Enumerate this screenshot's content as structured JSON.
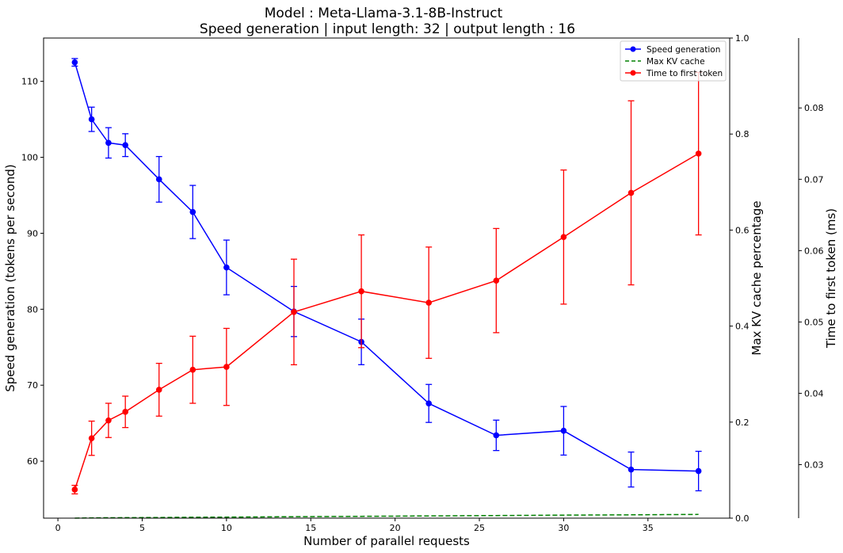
{
  "chart_data": {
    "type": "line",
    "title": "Model : Meta-Llama-3.1-8B-Instruct",
    "subtitle": "Speed generation | input length: 32 | output length : 16",
    "xlabel": "Number of parallel requests",
    "ylabel": "Speed generation (tokens per second)",
    "ylabel_right": "Max KV cache percentage",
    "ylabel_right2": "Time to first token (ms)",
    "xlim": [
      -0.85,
      39.85
    ],
    "ylim": [
      52.5,
      115.7
    ],
    "ylim_right": [
      0,
      1
    ],
    "ylim_right2": [
      0.0225,
      0.0898
    ],
    "x_ticks": [
      0,
      5,
      10,
      15,
      20,
      25,
      30,
      35
    ],
    "y_ticks": [
      60,
      70,
      80,
      90,
      100,
      110
    ],
    "y_ticks_right": [
      0.0,
      0.2,
      0.4,
      0.6,
      0.8,
      1.0
    ],
    "y_ticks_right2": [
      0.03,
      0.04,
      0.05,
      0.06,
      0.07,
      0.08
    ],
    "grid": false,
    "legend_position": "top-right",
    "legend": [
      "Speed generation",
      "Max KV cache",
      "Time to first token"
    ],
    "series": [
      {
        "name": "Speed generation",
        "axis": "left",
        "color": "#0000ff",
        "style": "solid",
        "markers": true,
        "x": [
          1,
          2,
          3,
          4,
          6,
          8,
          10,
          14,
          18,
          22,
          26,
          30,
          34,
          38
        ],
        "values": [
          112.5,
          105.0,
          101.9,
          101.6,
          97.1,
          92.8,
          85.5,
          79.7,
          75.7,
          67.6,
          63.4,
          64.0,
          58.9,
          58.7
        ],
        "err": [
          0.5,
          1.6,
          2.0,
          1.5,
          3.0,
          3.5,
          3.6,
          3.3,
          3.0,
          2.5,
          2.0,
          3.2,
          2.3,
          2.6
        ]
      },
      {
        "name": "Max KV cache",
        "axis": "right",
        "color": "#008000",
        "style": "dashed",
        "markers": false,
        "x": [
          1,
          2,
          3,
          4,
          6,
          8,
          10,
          14,
          18,
          22,
          26,
          30,
          34,
          38
        ],
        "values": [
          0.0,
          0.0005,
          0.0008,
          0.001,
          0.0014,
          0.0018,
          0.0022,
          0.003,
          0.0038,
          0.0046,
          0.0054,
          0.0062,
          0.007,
          0.0078
        ]
      },
      {
        "name": "Time to first token",
        "axis": "right2",
        "color": "#ff0000",
        "style": "solid",
        "markers": true,
        "x": [
          1,
          2,
          3,
          4,
          6,
          8,
          10,
          14,
          18,
          22,
          26,
          30,
          34,
          38
        ],
        "values": [
          0.0265,
          0.0337,
          0.0362,
          0.0374,
          0.0405,
          0.0433,
          0.0437,
          0.0514,
          0.0543,
          0.0527,
          0.0558,
          0.0619,
          0.0681,
          0.0736
        ],
        "err": [
          0.0006,
          0.0024,
          0.0024,
          0.0022,
          0.0037,
          0.0047,
          0.0054,
          0.0074,
          0.0079,
          0.0078,
          0.0073,
          0.0094,
          0.0129,
          0.0114
        ]
      }
    ]
  }
}
